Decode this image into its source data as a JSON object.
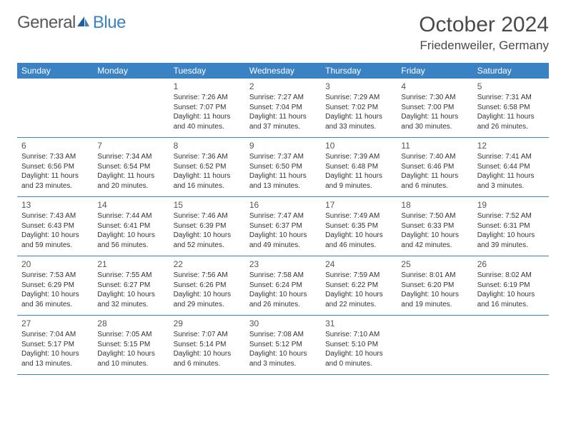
{
  "logo": {
    "text1": "General",
    "text2": "Blue"
  },
  "title": "October 2024",
  "location": "Friedenweiler, Germany",
  "colors": {
    "header_bg": "#3b82c4",
    "header_text": "#ffffff",
    "border": "#3b82c4",
    "body_text": "#333333",
    "logo_gray": "#58595b",
    "logo_blue": "#3b82c4"
  },
  "day_names": [
    "Sunday",
    "Monday",
    "Tuesday",
    "Wednesday",
    "Thursday",
    "Friday",
    "Saturday"
  ],
  "weeks": [
    [
      null,
      null,
      {
        "n": "1",
        "sr": "7:26 AM",
        "ss": "7:07 PM",
        "dl": "11 hours and 40 minutes."
      },
      {
        "n": "2",
        "sr": "7:27 AM",
        "ss": "7:04 PM",
        "dl": "11 hours and 37 minutes."
      },
      {
        "n": "3",
        "sr": "7:29 AM",
        "ss": "7:02 PM",
        "dl": "11 hours and 33 minutes."
      },
      {
        "n": "4",
        "sr": "7:30 AM",
        "ss": "7:00 PM",
        "dl": "11 hours and 30 minutes."
      },
      {
        "n": "5",
        "sr": "7:31 AM",
        "ss": "6:58 PM",
        "dl": "11 hours and 26 minutes."
      }
    ],
    [
      {
        "n": "6",
        "sr": "7:33 AM",
        "ss": "6:56 PM",
        "dl": "11 hours and 23 minutes."
      },
      {
        "n": "7",
        "sr": "7:34 AM",
        "ss": "6:54 PM",
        "dl": "11 hours and 20 minutes."
      },
      {
        "n": "8",
        "sr": "7:36 AM",
        "ss": "6:52 PM",
        "dl": "11 hours and 16 minutes."
      },
      {
        "n": "9",
        "sr": "7:37 AM",
        "ss": "6:50 PM",
        "dl": "11 hours and 13 minutes."
      },
      {
        "n": "10",
        "sr": "7:39 AM",
        "ss": "6:48 PM",
        "dl": "11 hours and 9 minutes."
      },
      {
        "n": "11",
        "sr": "7:40 AM",
        "ss": "6:46 PM",
        "dl": "11 hours and 6 minutes."
      },
      {
        "n": "12",
        "sr": "7:41 AM",
        "ss": "6:44 PM",
        "dl": "11 hours and 3 minutes."
      }
    ],
    [
      {
        "n": "13",
        "sr": "7:43 AM",
        "ss": "6:43 PM",
        "dl": "10 hours and 59 minutes."
      },
      {
        "n": "14",
        "sr": "7:44 AM",
        "ss": "6:41 PM",
        "dl": "10 hours and 56 minutes."
      },
      {
        "n": "15",
        "sr": "7:46 AM",
        "ss": "6:39 PM",
        "dl": "10 hours and 52 minutes."
      },
      {
        "n": "16",
        "sr": "7:47 AM",
        "ss": "6:37 PM",
        "dl": "10 hours and 49 minutes."
      },
      {
        "n": "17",
        "sr": "7:49 AM",
        "ss": "6:35 PM",
        "dl": "10 hours and 46 minutes."
      },
      {
        "n": "18",
        "sr": "7:50 AM",
        "ss": "6:33 PM",
        "dl": "10 hours and 42 minutes."
      },
      {
        "n": "19",
        "sr": "7:52 AM",
        "ss": "6:31 PM",
        "dl": "10 hours and 39 minutes."
      }
    ],
    [
      {
        "n": "20",
        "sr": "7:53 AM",
        "ss": "6:29 PM",
        "dl": "10 hours and 36 minutes."
      },
      {
        "n": "21",
        "sr": "7:55 AM",
        "ss": "6:27 PM",
        "dl": "10 hours and 32 minutes."
      },
      {
        "n": "22",
        "sr": "7:56 AM",
        "ss": "6:26 PM",
        "dl": "10 hours and 29 minutes."
      },
      {
        "n": "23",
        "sr": "7:58 AM",
        "ss": "6:24 PM",
        "dl": "10 hours and 26 minutes."
      },
      {
        "n": "24",
        "sr": "7:59 AM",
        "ss": "6:22 PM",
        "dl": "10 hours and 22 minutes."
      },
      {
        "n": "25",
        "sr": "8:01 AM",
        "ss": "6:20 PM",
        "dl": "10 hours and 19 minutes."
      },
      {
        "n": "26",
        "sr": "8:02 AM",
        "ss": "6:19 PM",
        "dl": "10 hours and 16 minutes."
      }
    ],
    [
      {
        "n": "27",
        "sr": "7:04 AM",
        "ss": "5:17 PM",
        "dl": "10 hours and 13 minutes."
      },
      {
        "n": "28",
        "sr": "7:05 AM",
        "ss": "5:15 PM",
        "dl": "10 hours and 10 minutes."
      },
      {
        "n": "29",
        "sr": "7:07 AM",
        "ss": "5:14 PM",
        "dl": "10 hours and 6 minutes."
      },
      {
        "n": "30",
        "sr": "7:08 AM",
        "ss": "5:12 PM",
        "dl": "10 hours and 3 minutes."
      },
      {
        "n": "31",
        "sr": "7:10 AM",
        "ss": "5:10 PM",
        "dl": "10 hours and 0 minutes."
      },
      null,
      null
    ]
  ],
  "labels": {
    "sunrise": "Sunrise: ",
    "sunset": "Sunset: ",
    "daylight": "Daylight: "
  }
}
